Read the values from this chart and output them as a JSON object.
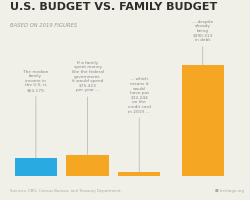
{
  "title": "U.S. BUDGET VS. FAMILY BUDGET",
  "subtitle": "BASED ON 2019 FIGURES",
  "bars": [
    63179,
    75423,
    12244,
    390313
  ],
  "bar_colors": [
    "#29abe2",
    "#f5a623",
    "#f5a623",
    "#f5a623"
  ],
  "bar_labels": [
    "The median\nfamily\nincome in\nthe U.S. is\n$63,179.",
    "If a family\nspent money\nlike the federal\ngovernment,\nit would spend\n$75,423\nper year ...",
    "... which\nmeans it\nwould\nhave put\n$12,244\non the\ncredit card\nin 2019 ...",
    "... despite\nalready\nbeing\n$390,313\nin debt."
  ],
  "bold_parts": [
    "$63,179.",
    "$75,423",
    "$12,244",
    "$390,313"
  ],
  "source_text": "Sources: CBO, Census Bureau, and Treasury Department.",
  "heritage_text": "heritage.org",
  "bg_color": "#f0efe8",
  "title_color": "#2d2d2d",
  "subtitle_color": "#999999",
  "label_color": "#888888",
  "source_color": "#aaaaaa",
  "positions": [
    0.11,
    0.33,
    0.55,
    0.82
  ],
  "bar_width": 0.18
}
